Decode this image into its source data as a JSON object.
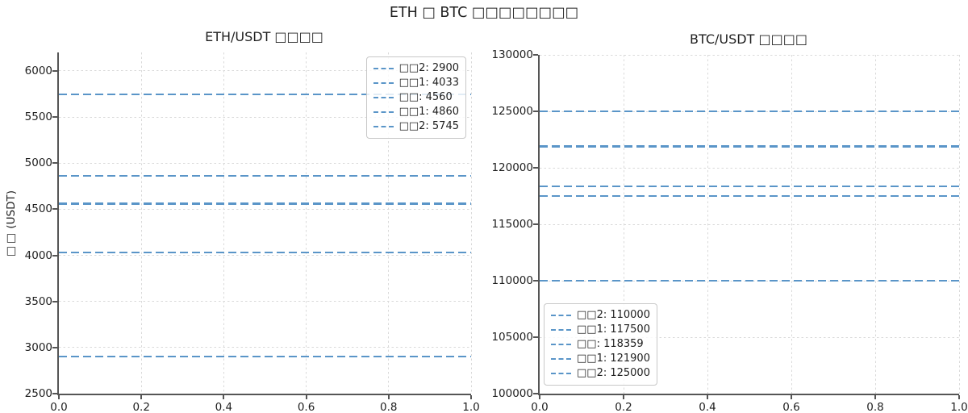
{
  "figure": {
    "suptitle": "ETH □ BTC □□□□□□□□"
  },
  "colors": {
    "level_line": "#5a95c8",
    "grid": "#d9d9d9",
    "spine": "#555555",
    "text": "#1f1f1f",
    "legend_border": "#c8c8c8"
  },
  "chart_data": [
    {
      "type": "line",
      "title": "ETH/USDT □□□□",
      "ylabel": "□□ (USDT)",
      "xlim": [
        0,
        1
      ],
      "ylim": [
        2500,
        6200
      ],
      "xtick_values": [
        0,
        0.2,
        0.4,
        0.6,
        0.8,
        1.0
      ],
      "xtick_labels": [
        "0.0",
        "0.2",
        "0.4",
        "0.6",
        "0.8",
        "1.0"
      ],
      "ytick_values": [
        2500,
        3000,
        3500,
        4000,
        4500,
        5000,
        5500,
        6000
      ],
      "ytick_labels": [
        "2500",
        "3000",
        "3500",
        "4000",
        "4500",
        "5000",
        "5500",
        "6000"
      ],
      "grid": true,
      "legend_position": "upper-right",
      "levels": [
        {
          "label": "□□2: 2900",
          "value": 2900
        },
        {
          "label": "□□1: 4033",
          "value": 4033
        },
        {
          "label": "□□: 4560",
          "value": 4560
        },
        {
          "label": "□□1: 4860",
          "value": 4860
        },
        {
          "label": "□□2: 5745",
          "value": 5745
        }
      ]
    },
    {
      "type": "line",
      "title": "BTC/USDT □□□□",
      "ylabel": "",
      "xlim": [
        0,
        1
      ],
      "ylim": [
        100000,
        130000
      ],
      "xtick_values": [
        0,
        0.2,
        0.4,
        0.6,
        0.8,
        1.0
      ],
      "xtick_labels": [
        "0.0",
        "0.2",
        "0.4",
        "0.6",
        "0.8",
        "1.0"
      ],
      "ytick_values": [
        100000,
        105000,
        110000,
        115000,
        120000,
        125000,
        130000
      ],
      "ytick_labels": [
        "100000",
        "105000",
        "110000",
        "115000",
        "120000",
        "125000",
        "130000"
      ],
      "grid": true,
      "legend_position": "lower-left",
      "levels": [
        {
          "label": "□□2: 110000",
          "value": 110000
        },
        {
          "label": "□□1: 117500",
          "value": 117500
        },
        {
          "label": "□□: 118359",
          "value": 118359
        },
        {
          "label": "□□1: 121900",
          "value": 121900
        },
        {
          "label": "□□2: 125000",
          "value": 125000
        }
      ]
    }
  ]
}
